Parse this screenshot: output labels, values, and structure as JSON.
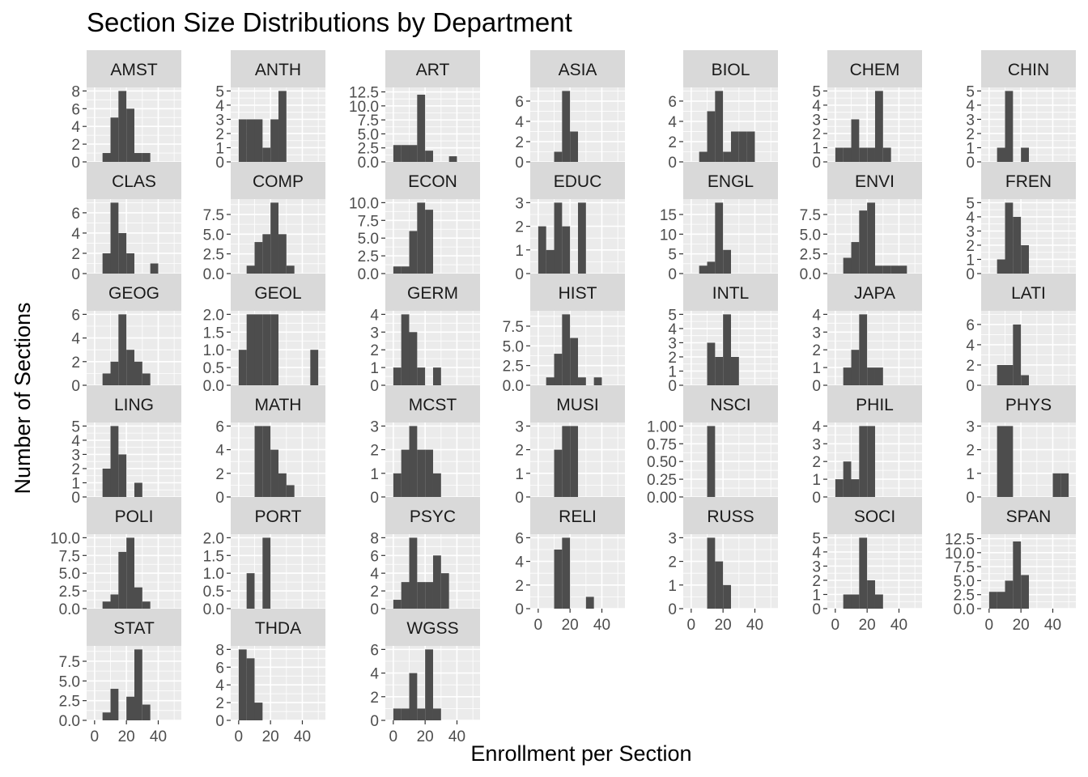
{
  "chart_data": {
    "type": "histogram-facets",
    "title": "Section Size Distributions by Department",
    "xlabel": "Enrollment per Section",
    "ylabel": "Number of Sections",
    "bin_width": 5,
    "x_ticks": [
      0,
      20,
      40
    ],
    "panels": [
      {
        "name": "AMST",
        "yticks": [
          "0",
          "2",
          "4",
          "6",
          "8"
        ],
        "ymax": 8.4,
        "bins": [
          [
            5,
            1
          ],
          [
            10,
            5
          ],
          [
            15,
            8
          ],
          [
            20,
            6
          ],
          [
            25,
            1
          ],
          [
            30,
            1
          ]
        ]
      },
      {
        "name": "ANTH",
        "yticks": [
          "0",
          "1",
          "2",
          "3",
          "4",
          "5"
        ],
        "ymax": 5.25,
        "bins": [
          [
            0,
            3
          ],
          [
            5,
            3
          ],
          [
            10,
            3
          ],
          [
            15,
            1
          ],
          [
            20,
            3
          ],
          [
            25,
            5
          ]
        ]
      },
      {
        "name": "ART",
        "yticks": [
          "0.0",
          "2.5",
          "5.0",
          "7.5",
          "10.0",
          "12.5"
        ],
        "ymax": 13.3,
        "bins": [
          [
            0,
            3
          ],
          [
            5,
            3
          ],
          [
            10,
            3
          ],
          [
            15,
            12
          ],
          [
            20,
            2
          ],
          [
            35,
            1
          ]
        ]
      },
      {
        "name": "ASIA",
        "yticks": [
          "0",
          "2",
          "4",
          "6"
        ],
        "ymax": 7.35,
        "bins": [
          [
            10,
            1
          ],
          [
            15,
            7
          ],
          [
            20,
            3
          ]
        ]
      },
      {
        "name": "BIOL",
        "yticks": [
          "0",
          "2",
          "4",
          "6"
        ],
        "ymax": 7.35,
        "bins": [
          [
            5,
            1
          ],
          [
            10,
            5
          ],
          [
            15,
            7
          ],
          [
            20,
            1
          ],
          [
            25,
            3
          ],
          [
            30,
            3
          ],
          [
            35,
            3
          ]
        ]
      },
      {
        "name": "CHEM",
        "yticks": [
          "0",
          "1",
          "2",
          "3",
          "4",
          "5"
        ],
        "ymax": 5.25,
        "bins": [
          [
            0,
            1
          ],
          [
            5,
            1
          ],
          [
            10,
            3
          ],
          [
            15,
            1
          ],
          [
            20,
            1
          ],
          [
            25,
            5
          ],
          [
            30,
            1
          ]
        ]
      },
      {
        "name": "CHIN",
        "yticks": [
          "0",
          "1",
          "2",
          "3",
          "4",
          "5"
        ],
        "ymax": 5.25,
        "bins": [
          [
            5,
            1
          ],
          [
            10,
            5
          ],
          [
            20,
            1
          ]
        ]
      },
      {
        "name": "CLAS",
        "yticks": [
          "0",
          "2",
          "4",
          "6"
        ],
        "ymax": 7.35,
        "bins": [
          [
            5,
            2
          ],
          [
            10,
            7
          ],
          [
            15,
            4
          ],
          [
            20,
            2
          ],
          [
            35,
            1
          ]
        ]
      },
      {
        "name": "COMP",
        "yticks": [
          "0.0",
          "2.5",
          "5.0",
          "7.5"
        ],
        "ymax": 9.45,
        "bins": [
          [
            5,
            1
          ],
          [
            10,
            4
          ],
          [
            15,
            5
          ],
          [
            20,
            9
          ],
          [
            25,
            5
          ],
          [
            30,
            1
          ]
        ]
      },
      {
        "name": "ECON",
        "yticks": [
          "0.0",
          "2.5",
          "5.0",
          "7.5",
          "10.0"
        ],
        "ymax": 10.5,
        "bins": [
          [
            0,
            1
          ],
          [
            5,
            1
          ],
          [
            10,
            6
          ],
          [
            15,
            10
          ],
          [
            20,
            9
          ]
        ]
      },
      {
        "name": "EDUC",
        "yticks": [
          "0",
          "1",
          "2",
          "3"
        ],
        "ymax": 3.15,
        "bins": [
          [
            0,
            2
          ],
          [
            5,
            1
          ],
          [
            10,
            3
          ],
          [
            15,
            2
          ],
          [
            25,
            3
          ]
        ]
      },
      {
        "name": "ENGL",
        "yticks": [
          "0",
          "5",
          "10",
          "15"
        ],
        "ymax": 18.9,
        "bins": [
          [
            5,
            2
          ],
          [
            10,
            3
          ],
          [
            15,
            18
          ],
          [
            20,
            6
          ]
        ]
      },
      {
        "name": "ENVI",
        "yticks": [
          "0.0",
          "2.5",
          "5.0",
          "7.5"
        ],
        "ymax": 9.45,
        "bins": [
          [
            5,
            2
          ],
          [
            10,
            4
          ],
          [
            15,
            8
          ],
          [
            20,
            9
          ],
          [
            25,
            1
          ],
          [
            30,
            1
          ],
          [
            35,
            1
          ],
          [
            40,
            1
          ]
        ]
      },
      {
        "name": "FREN",
        "yticks": [
          "0",
          "1",
          "2",
          "3",
          "4",
          "5"
        ],
        "ymax": 5.25,
        "bins": [
          [
            5,
            1
          ],
          [
            10,
            5
          ],
          [
            15,
            4
          ],
          [
            20,
            2
          ]
        ]
      },
      {
        "name": "GEOG",
        "yticks": [
          "0",
          "2",
          "4",
          "6"
        ],
        "ymax": 6.3,
        "bins": [
          [
            5,
            1
          ],
          [
            10,
            2
          ],
          [
            15,
            6
          ],
          [
            20,
            3
          ],
          [
            25,
            2
          ],
          [
            30,
            1
          ]
        ]
      },
      {
        "name": "GEOL",
        "yticks": [
          "0.0",
          "0.5",
          "1.0",
          "1.5",
          "2.0"
        ],
        "ymax": 2.1,
        "bins": [
          [
            0,
            1
          ],
          [
            5,
            2
          ],
          [
            10,
            2
          ],
          [
            15,
            2
          ],
          [
            20,
            2
          ],
          [
            45,
            1
          ]
        ]
      },
      {
        "name": "GERM",
        "yticks": [
          "0",
          "1",
          "2",
          "3",
          "4"
        ],
        "ymax": 4.2,
        "bins": [
          [
            0,
            1
          ],
          [
            5,
            4
          ],
          [
            10,
            3
          ],
          [
            15,
            1
          ],
          [
            25,
            1
          ]
        ]
      },
      {
        "name": "HIST",
        "yticks": [
          "0.0",
          "2.5",
          "5.0",
          "7.5"
        ],
        "ymax": 9.45,
        "bins": [
          [
            5,
            1
          ],
          [
            10,
            4
          ],
          [
            15,
            9
          ],
          [
            20,
            6
          ],
          [
            25,
            1
          ],
          [
            35,
            1
          ]
        ]
      },
      {
        "name": "INTL",
        "yticks": [
          "0",
          "1",
          "2",
          "3",
          "4",
          "5"
        ],
        "ymax": 5.25,
        "bins": [
          [
            10,
            3
          ],
          [
            15,
            2
          ],
          [
            20,
            5
          ],
          [
            25,
            2
          ]
        ]
      },
      {
        "name": "JAPA",
        "yticks": [
          "0",
          "1",
          "2",
          "3",
          "4"
        ],
        "ymax": 4.2,
        "bins": [
          [
            5,
            1
          ],
          [
            10,
            2
          ],
          [
            15,
            4
          ],
          [
            20,
            1
          ],
          [
            25,
            1
          ]
        ]
      },
      {
        "name": "LATI",
        "yticks": [
          "0",
          "2",
          "4",
          "6"
        ],
        "ymax": 7.35,
        "bins": [
          [
            5,
            2
          ],
          [
            10,
            2
          ],
          [
            15,
            6
          ],
          [
            20,
            1
          ]
        ]
      },
      {
        "name": "LING",
        "yticks": [
          "0",
          "1",
          "2",
          "3",
          "4",
          "5"
        ],
        "ymax": 5.25,
        "bins": [
          [
            5,
            2
          ],
          [
            10,
            5
          ],
          [
            15,
            3
          ],
          [
            25,
            1
          ]
        ]
      },
      {
        "name": "MATH",
        "yticks": [
          "0",
          "2",
          "4",
          "6"
        ],
        "ymax": 6.3,
        "bins": [
          [
            10,
            6
          ],
          [
            15,
            6
          ],
          [
            20,
            4
          ],
          [
            25,
            2
          ],
          [
            30,
            1
          ]
        ]
      },
      {
        "name": "MCST",
        "yticks": [
          "0",
          "1",
          "2",
          "3"
        ],
        "ymax": 3.15,
        "bins": [
          [
            0,
            1
          ],
          [
            5,
            2
          ],
          [
            10,
            3
          ],
          [
            15,
            2
          ],
          [
            20,
            2
          ],
          [
            25,
            1
          ]
        ]
      },
      {
        "name": "MUSI",
        "yticks": [
          "0",
          "1",
          "2",
          "3"
        ],
        "ymax": 3.15,
        "bins": [
          [
            10,
            2
          ],
          [
            15,
            3
          ],
          [
            20,
            3
          ]
        ]
      },
      {
        "name": "NSCI",
        "yticks": [
          "0.00",
          "0.25",
          "0.50",
          "0.75",
          "1.00"
        ],
        "ymax": 1.05,
        "bins": [
          [
            10,
            1
          ]
        ]
      },
      {
        "name": "PHIL",
        "yticks": [
          "0",
          "1",
          "2",
          "3",
          "4"
        ],
        "ymax": 4.2,
        "bins": [
          [
            0,
            1
          ],
          [
            5,
            2
          ],
          [
            10,
            1
          ],
          [
            15,
            4
          ],
          [
            20,
            4
          ]
        ]
      },
      {
        "name": "PHYS",
        "yticks": [
          "0",
          "1",
          "2",
          "3"
        ],
        "ymax": 3.15,
        "bins": [
          [
            5,
            3
          ],
          [
            10,
            3
          ],
          [
            40,
            1
          ],
          [
            45,
            1
          ]
        ]
      },
      {
        "name": "POLI",
        "yticks": [
          "0.0",
          "2.5",
          "5.0",
          "7.5",
          "10.0"
        ],
        "ymax": 10.5,
        "bins": [
          [
            5,
            1
          ],
          [
            10,
            2
          ],
          [
            15,
            8
          ],
          [
            20,
            10
          ],
          [
            25,
            3
          ],
          [
            30,
            1
          ]
        ]
      },
      {
        "name": "PORT",
        "yticks": [
          "0.0",
          "0.5",
          "1.0",
          "1.5",
          "2.0"
        ],
        "ymax": 2.1,
        "bins": [
          [
            5,
            1
          ],
          [
            15,
            2
          ]
        ]
      },
      {
        "name": "PSYC",
        "yticks": [
          "0",
          "2",
          "4",
          "6",
          "8"
        ],
        "ymax": 8.4,
        "bins": [
          [
            0,
            1
          ],
          [
            5,
            3
          ],
          [
            10,
            8
          ],
          [
            15,
            3
          ],
          [
            20,
            3
          ],
          [
            25,
            6
          ],
          [
            30,
            4
          ]
        ]
      },
      {
        "name": "RELI",
        "yticks": [
          "0",
          "2",
          "4",
          "6"
        ],
        "ymax": 6.3,
        "bins": [
          [
            10,
            5
          ],
          [
            15,
            6
          ],
          [
            30,
            1
          ]
        ]
      },
      {
        "name": "RUSS",
        "yticks": [
          "0",
          "1",
          "2",
          "3"
        ],
        "ymax": 3.15,
        "bins": [
          [
            10,
            3
          ],
          [
            15,
            2
          ],
          [
            20,
            1
          ]
        ]
      },
      {
        "name": "SOCI",
        "yticks": [
          "0",
          "1",
          "2",
          "3",
          "4",
          "5"
        ],
        "ymax": 5.25,
        "bins": [
          [
            5,
            1
          ],
          [
            10,
            1
          ],
          [
            15,
            5
          ],
          [
            20,
            2
          ],
          [
            25,
            1
          ]
        ]
      },
      {
        "name": "SPAN",
        "yticks": [
          "0.0",
          "2.5",
          "5.0",
          "7.5",
          "10.0",
          "12.5"
        ],
        "ymax": 13.3,
        "bins": [
          [
            0,
            3
          ],
          [
            5,
            3
          ],
          [
            10,
            5
          ],
          [
            15,
            12
          ],
          [
            20,
            6
          ]
        ]
      },
      {
        "name": "STAT",
        "yticks": [
          "0.0",
          "2.5",
          "5.0",
          "7.5"
        ],
        "ymax": 9.45,
        "bins": [
          [
            5,
            1
          ],
          [
            10,
            4
          ],
          [
            20,
            3
          ],
          [
            25,
            9
          ],
          [
            30,
            2
          ]
        ]
      },
      {
        "name": "THDA",
        "yticks": [
          "0",
          "2",
          "4",
          "6",
          "8"
        ],
        "ymax": 8.4,
        "bins": [
          [
            0,
            8
          ],
          [
            5,
            7
          ],
          [
            10,
            2
          ]
        ]
      },
      {
        "name": "WGSS",
        "yticks": [
          "0",
          "2",
          "4",
          "6"
        ],
        "ymax": 6.3,
        "bins": [
          [
            0,
            1
          ],
          [
            5,
            1
          ],
          [
            10,
            4
          ],
          [
            15,
            1
          ],
          [
            20,
            6
          ],
          [
            25,
            1
          ]
        ]
      }
    ]
  }
}
